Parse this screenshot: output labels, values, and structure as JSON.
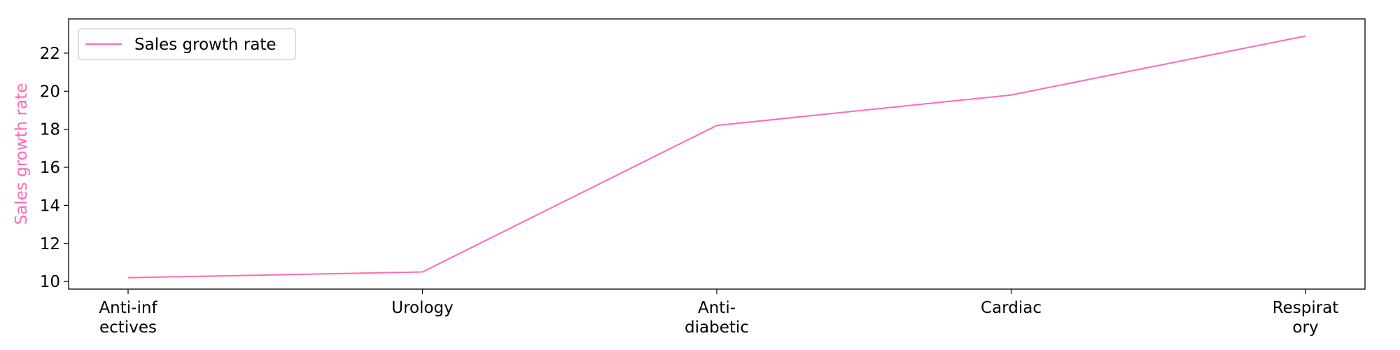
{
  "chart_data": {
    "type": "line",
    "categories": [
      "Anti-inf\nectives",
      "Urology",
      "Anti-\ndiabetic",
      "Cardiac",
      "Respirat\nory"
    ],
    "series": [
      {
        "name": "Sales growth rate",
        "values": [
          10.2,
          10.5,
          18.2,
          19.8,
          22.9
        ],
        "color": "#ff69b4"
      }
    ],
    "title": "",
    "xlabel": "",
    "ylabel": "Sales growth rate",
    "ylabel_color": "#ff69b4",
    "ylim": [
      9.6,
      23.8
    ],
    "yticks": [
      10,
      12,
      14,
      16,
      18,
      20,
      22
    ],
    "grid": false,
    "legend": {
      "position": "top-left",
      "entries": [
        "Sales growth rate"
      ]
    }
  }
}
